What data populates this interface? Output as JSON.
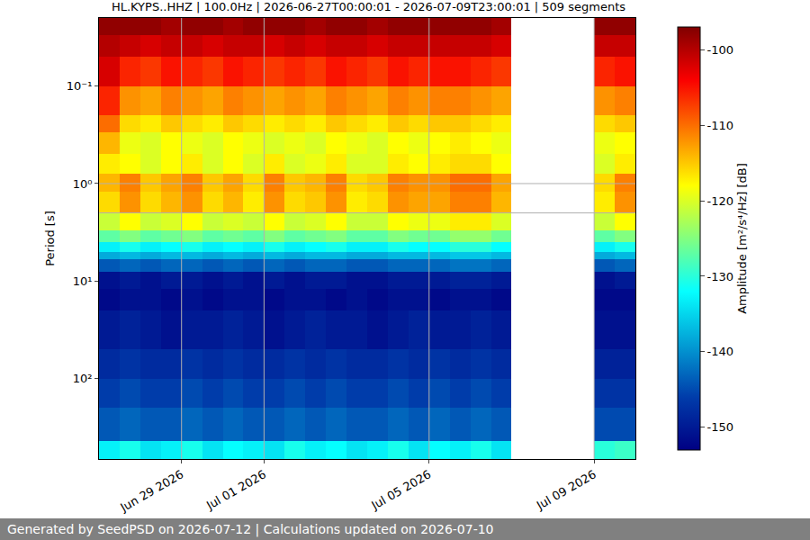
{
  "chart_data": {
    "type": "heatmap",
    "title": "HL.KYPS..HHZ | 100.0Hz | 2026-06-27T00:00:01 - 2026-07-09T23:00:01 | 509 segments",
    "ylabel": "Period [s]",
    "colorbar_label": "Amplitude [m²/s⁴/Hz] [dB]",
    "footer": "Generated by SeedPSD on 2026-07-12 | Calculations updated on 2026-07-10",
    "log": "y",
    "grid": true,
    "x": [
      "2026-06-27 00:00",
      "2026-06-27 12:00",
      "2026-06-28 00:00",
      "2026-06-28 12:00",
      "2026-06-29 00:00",
      "2026-06-29 12:00",
      "2026-06-30 00:00",
      "2026-06-30 12:00",
      "2026-07-01 00:00",
      "2026-07-01 12:00",
      "2026-07-02 00:00",
      "2026-07-02 12:00",
      "2026-07-03 00:00",
      "2026-07-03 12:00",
      "2026-07-04 00:00",
      "2026-07-04 12:00",
      "2026-07-05 00:00",
      "2026-07-05 12:00",
      "2026-07-06 00:00",
      "2026-07-06 12:00",
      "2026-07-07 00:00",
      "2026-07-07 12:00",
      "2026-07-08 00:00",
      "2026-07-08 12:00",
      "2026-07-09 00:00",
      "2026-07-09 12:00",
      "2026-07-10 00:00"
    ],
    "y": [
      0.02,
      0.03,
      0.05,
      0.1,
      0.2,
      0.3,
      0.5,
      0.8,
      1.2,
      2,
      3,
      4,
      5,
      6,
      8,
      12,
      20,
      50,
      100,
      200,
      440,
      670
    ],
    "z": [
      [
        -98,
        -98,
        -98,
        -99,
        -98,
        -98,
        -99,
        -98,
        -98,
        -98,
        -99,
        -98,
        -98,
        -99,
        -98,
        -98,
        -98,
        -98,
        -98,
        -99,
        null,
        null,
        null,
        null,
        -98,
        -98
      ],
      [
        -100,
        -101,
        -102,
        -101,
        -101,
        -102,
        -101,
        -101,
        -102,
        -101,
        -102,
        -101,
        -101,
        -102,
        -101,
        -101,
        -101,
        -101,
        -101,
        -102,
        null,
        null,
        null,
        null,
        -101,
        -101
      ],
      [
        -102,
        -106,
        -107,
        -105,
        -106,
        -107,
        -105,
        -106,
        -107,
        -106,
        -107,
        -105,
        -106,
        -107,
        -105,
        -106,
        -105,
        -105,
        -106,
        -107,
        null,
        null,
        null,
        null,
        -106,
        -105
      ],
      [
        -106,
        -112,
        -113,
        -111,
        -112,
        -113,
        -111,
        -112,
        -113,
        -112,
        -113,
        -111,
        -112,
        -113,
        -111,
        -112,
        -111,
        -111,
        -112,
        -113,
        null,
        null,
        null,
        null,
        -112,
        -111
      ],
      [
        -110,
        -116,
        -117,
        -115,
        -116,
        -117,
        -115,
        -116,
        -117,
        -116,
        -117,
        -115,
        -116,
        -117,
        -115,
        -116,
        -115,
        -115,
        -116,
        -117,
        null,
        null,
        null,
        null,
        -116,
        -115
      ],
      [
        -114,
        -119,
        -120,
        -118,
        -119,
        -120,
        -118,
        -119,
        -120,
        -119,
        -120,
        -118,
        -119,
        -120,
        -118,
        -119,
        -118,
        -117,
        -118,
        -119,
        null,
        null,
        null,
        null,
        -119,
        -118
      ],
      [
        -117,
        -118,
        -120,
        -118,
        -117,
        -120,
        -118,
        -120,
        -117,
        -120,
        -119,
        -117,
        -120,
        -120,
        -117,
        -118,
        -117,
        -116,
        -116,
        -118,
        null,
        null,
        null,
        null,
        -120,
        -117
      ],
      [
        -114,
        -111,
        -115,
        -113,
        -111,
        -115,
        -113,
        -116,
        -111,
        -115,
        -114,
        -111,
        -116,
        -115,
        -111,
        -112,
        -112,
        -110,
        -110,
        -113,
        null,
        null,
        null,
        null,
        -116,
        -111
      ],
      [
        -116,
        -112,
        -116,
        -114,
        -112,
        -116,
        -114,
        -117,
        -112,
        -116,
        -115,
        -112,
        -117,
        -116,
        -112,
        -113,
        -113,
        -111,
        -111,
        -114,
        null,
        null,
        null,
        null,
        -117,
        -112
      ],
      [
        -121,
        -118,
        -121,
        -120,
        -118,
        -121,
        -120,
        -121,
        -118,
        -121,
        -120,
        -118,
        -121,
        -121,
        -118,
        -119,
        -119,
        -117,
        -117,
        -120,
        null,
        null,
        null,
        null,
        -121,
        -118
      ],
      [
        -127,
        -125,
        -127,
        -126,
        -125,
        -127,
        -126,
        -127,
        -125,
        -127,
        -126,
        -125,
        -127,
        -127,
        -125,
        -126,
        -126,
        -124,
        -124,
        -126,
        null,
        null,
        null,
        null,
        -127,
        -125
      ],
      [
        -133,
        -131,
        -133,
        -132,
        -131,
        -133,
        -132,
        -133,
        -131,
        -133,
        -132,
        -131,
        -133,
        -133,
        -131,
        -132,
        -132,
        -130,
        -130,
        -132,
        null,
        null,
        null,
        null,
        -133,
        -131
      ],
      [
        -138,
        -137,
        -138,
        -137,
        -137,
        -138,
        -137,
        -138,
        -137,
        -138,
        -137,
        -137,
        -138,
        -138,
        -137,
        -137,
        -137,
        -136,
        -136,
        -137,
        null,
        null,
        null,
        null,
        -138,
        -137
      ],
      [
        -144,
        -143,
        -144,
        -143,
        -143,
        -144,
        -143,
        -144,
        -143,
        -144,
        -143,
        -143,
        -144,
        -144,
        -143,
        -143,
        -143,
        -142,
        -142,
        -143,
        null,
        null,
        null,
        null,
        -144,
        -143
      ],
      [
        -151,
        -150,
        -151,
        -150,
        -150,
        -151,
        -150,
        -151,
        -150,
        -151,
        -150,
        -150,
        -151,
        -151,
        -150,
        -150,
        -150,
        -149,
        -149,
        -150,
        null,
        null,
        null,
        null,
        -151,
        -150
      ],
      [
        -152,
        -151,
        -151,
        -152,
        -151,
        -152,
        -151,
        -151,
        -152,
        -151,
        -151,
        -152,
        -151,
        -152,
        -151,
        -151,
        -152,
        -151,
        -151,
        -152,
        null,
        null,
        null,
        null,
        -152,
        -152
      ],
      [
        -150,
        -149,
        -150,
        -151,
        -150,
        -150,
        -149,
        -150,
        -151,
        -150,
        -149,
        -150,
        -150,
        -151,
        -150,
        -149,
        -150,
        -150,
        -149,
        -150,
        null,
        null,
        null,
        null,
        -151,
        -151
      ],
      [
        -148,
        -147,
        -148,
        -148,
        -147,
        -148,
        -147,
        -148,
        -148,
        -147,
        -148,
        -147,
        -148,
        -148,
        -147,
        -148,
        -147,
        -148,
        -147,
        -148,
        null,
        null,
        null,
        null,
        -149,
        -149
      ],
      [
        -146,
        -145,
        -146,
        -146,
        -145,
        -146,
        -145,
        -146,
        -146,
        -145,
        -146,
        -145,
        -146,
        -146,
        -145,
        -146,
        -145,
        -146,
        -145,
        -146,
        null,
        null,
        null,
        null,
        -147,
        -147
      ],
      [
        -144,
        -143,
        -144,
        -144,
        -143,
        -144,
        -143,
        -144,
        -144,
        -143,
        -144,
        -143,
        -144,
        -144,
        -143,
        -144,
        -143,
        -144,
        -143,
        -144,
        null,
        null,
        null,
        null,
        -145,
        -145
      ],
      [
        -133,
        -131,
        -134,
        -133,
        -131,
        -134,
        -132,
        -133,
        -134,
        -131,
        -133,
        -132,
        -134,
        -133,
        -131,
        -134,
        -132,
        -133,
        -131,
        -134,
        null,
        null,
        null,
        null,
        -130,
        -129
      ]
    ],
    "xlim": [
      "2026-06-27 00:00",
      "2026-07-10 00:00"
    ],
    "xticks": [
      {
        "value": "2026-06-29",
        "label": "Jun 29 2026"
      },
      {
        "value": "2026-07-01",
        "label": "Jul 01 2026"
      },
      {
        "value": "2026-07-05",
        "label": "Jul 05 2026"
      },
      {
        "value": "2026-07-09",
        "label": "Jul 09 2026"
      }
    ],
    "ylim": [
      0.02,
      670
    ],
    "yticks": [
      {
        "value": 0.1,
        "label": "10⁻¹"
      },
      {
        "value": 1,
        "label": "10⁰"
      },
      {
        "value": 10,
        "label": "10¹"
      },
      {
        "value": 100,
        "label": "10²"
      }
    ],
    "zlim": [
      -153,
      -97
    ],
    "zticks": [
      -150,
      -140,
      -130,
      -120,
      -110,
      -100
    ]
  }
}
